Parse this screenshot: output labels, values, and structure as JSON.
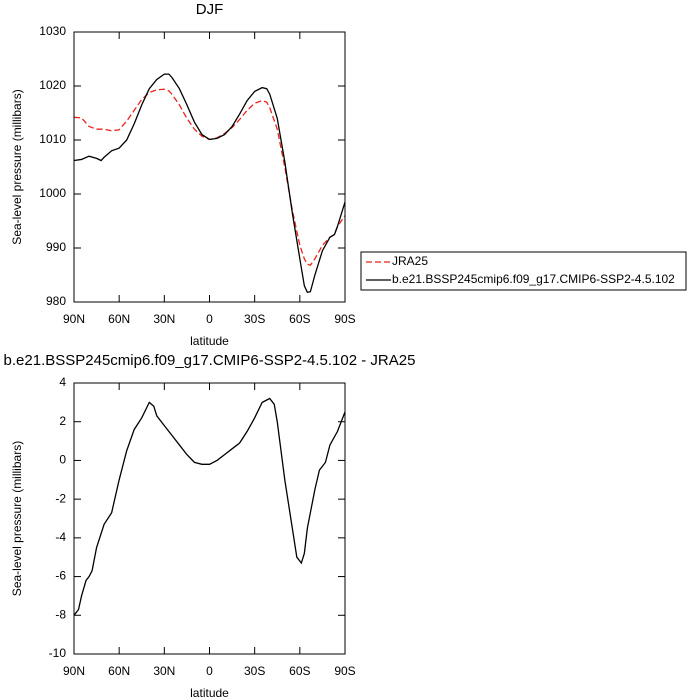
{
  "chart_data": [
    {
      "type": "line",
      "title": "DJF",
      "xlabel": "latitude",
      "ylabel": "Sea-level pressure (millibars)",
      "x": [
        90,
        85,
        80,
        75,
        72,
        70,
        65,
        60,
        55,
        50,
        45,
        40,
        35,
        30,
        27,
        25,
        20,
        15,
        10,
        5,
        0,
        -5,
        -10,
        -15,
        -20,
        -25,
        -30,
        -35,
        -38,
        -40,
        -45,
        -50,
        -55,
        -60,
        -63,
        -65,
        -67,
        -70,
        -75,
        -80,
        -83,
        -85,
        -90
      ],
      "series": [
        {
          "name": "JRA25",
          "color": "#e8241d",
          "linestyle": "dashed",
          "values": [
            1014.2,
            1014.1,
            1012.5,
            1012,
            1012,
            1012,
            1011.7,
            1011.9,
            1013.5,
            1015.5,
            1017.5,
            1018.8,
            1019.3,
            1019.4,
            1019.1,
            1018.5,
            1016.5,
            1014,
            1012,
            1010.7,
            1010.1,
            1010.4,
            1011.2,
            1012.3,
            1013.8,
            1015.5,
            1016.8,
            1017.3,
            1017,
            1016,
            1012,
            1005,
            997,
            990.5,
            988,
            987,
            986.8,
            988,
            990.5,
            992,
            992.5,
            994,
            996
          ]
        },
        {
          "name": "b.e21.BSSP245cmip6.f09_g17.CMIP6-SSP2-4.5.102",
          "color": "#000000",
          "linestyle": "solid",
          "values": [
            1006.2,
            1006.4,
            1007,
            1006.6,
            1006.2,
            1006.8,
            1008,
            1008.5,
            1010,
            1013,
            1016.5,
            1019.5,
            1021.2,
            1022.2,
            1022.2,
            1021.6,
            1019.5,
            1016.5,
            1013.3,
            1011,
            1010.1,
            1010.3,
            1011,
            1012.5,
            1014.8,
            1017.3,
            1019,
            1019.7,
            1019.5,
            1018.5,
            1014,
            1006,
            996.5,
            988,
            983,
            981.8,
            981.9,
            985,
            989.5,
            992,
            992.5,
            994,
            998.5
          ]
        }
      ],
      "xlim": [
        90,
        -90
      ],
      "ylim": [
        980,
        1030
      ],
      "xticks": [
        {
          "value": 90,
          "label": "90N"
        },
        {
          "value": 60,
          "label": "60N"
        },
        {
          "value": 30,
          "label": "30N"
        },
        0,
        {
          "value": -30,
          "label": "30S"
        },
        {
          "value": -60,
          "label": "60S"
        },
        {
          "value": -90,
          "label": "90S"
        }
      ],
      "yticks": [
        980,
        990,
        1000,
        1010,
        1020,
        1030
      ],
      "legend": "right"
    },
    {
      "type": "line",
      "title": "b.e21.BSSP245cmip6.f09_g17.CMIP6-SSP2-4.5.102 - JRA25",
      "xlabel": "latitude",
      "ylabel": "Sea-level pressure (millibars)",
      "x": [
        90,
        87,
        85,
        82,
        80,
        78,
        75,
        70,
        65,
        60,
        55,
        50,
        45,
        40,
        37,
        35,
        30,
        25,
        20,
        15,
        10,
        5,
        0,
        -5,
        -10,
        -15,
        -20,
        -25,
        -30,
        -35,
        -40,
        -43,
        -45,
        -50,
        -55,
        -58,
        -61,
        -63,
        -65,
        -70,
        -73,
        -77,
        -80,
        -85,
        -90
      ],
      "series": [
        {
          "color": "#000000",
          "linestyle": "solid",
          "values": [
            -8,
            -7.7,
            -7,
            -6.2,
            -6,
            -5.7,
            -4.5,
            -3.3,
            -2.7,
            -1,
            0.5,
            1.6,
            2.2,
            3,
            2.8,
            2.3,
            1.8,
            1.3,
            0.8,
            0.3,
            -0.1,
            -0.2,
            -0.2,
            0,
            0.3,
            0.6,
            0.9,
            1.5,
            2.2,
            3,
            3.2,
            2.9,
            2,
            -1,
            -3.5,
            -5,
            -5.3,
            -4.8,
            -3.5,
            -1.5,
            -0.5,
            -0.1,
            0.8,
            1.5,
            2.5
          ]
        }
      ],
      "xlim": [
        90,
        -90
      ],
      "ylim": [
        -10,
        4
      ],
      "xticks": [
        {
          "value": 90,
          "label": "90N"
        },
        {
          "value": 60,
          "label": "60N"
        },
        {
          "value": 30,
          "label": "30N"
        },
        0,
        {
          "value": -30,
          "label": "30S"
        },
        {
          "value": -60,
          "label": "60S"
        },
        {
          "value": -90,
          "label": "90S"
        }
      ],
      "yticks": [
        -10,
        -8,
        -6,
        -4,
        -2,
        0,
        2,
        4
      ]
    }
  ]
}
